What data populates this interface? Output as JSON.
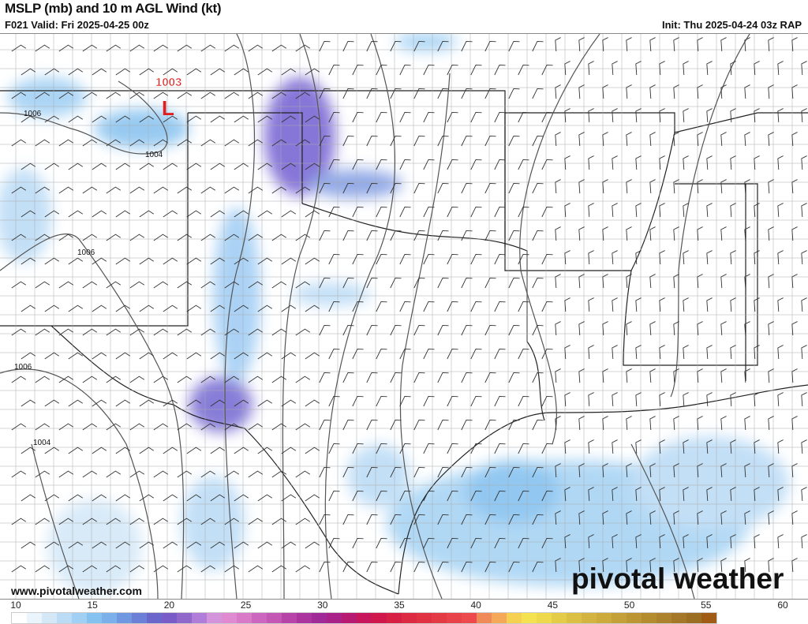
{
  "header": {
    "title": "MSLP (mb) and 10 m AGL Wind (kt)",
    "valid": "F021 Valid: Fri 2025-04-25 00z",
    "init": "Init: Thu 2025-04-24 03z RAP"
  },
  "map": {
    "low_center": {
      "value": "1003",
      "symbol": "L",
      "color": "#e02020"
    },
    "isobar_labels": [
      "1006",
      "1004",
      "1006",
      "1006",
      "1004"
    ]
  },
  "footer": {
    "website": "www.pivotalweather.com",
    "logo": "pivotal weather"
  },
  "colorbar": {
    "ticks": [
      "10",
      "15",
      "20",
      "25",
      "30",
      "35",
      "40",
      "45",
      "50",
      "55",
      "60"
    ],
    "colors": [
      "#ffffff",
      "#eaf4fc",
      "#d4e8f8",
      "#bcdcf6",
      "#a2d0f4",
      "#86c2f0",
      "#7cb0ea",
      "#7098e0",
      "#6c80d8",
      "#6a66cc",
      "#7a5cc8",
      "#9068cc",
      "#b07ed8",
      "#d494dc",
      "#e08ad2",
      "#d87ac8",
      "#cc66be",
      "#c456b4",
      "#b844aa",
      "#ac349e",
      "#a02a98",
      "#a8228a",
      "#b81a72",
      "#c8165c",
      "#d0184c",
      "#d82044",
      "#dc2a42",
      "#e03242",
      "#e43a46",
      "#e8424a",
      "#ec4a4c",
      "#f08a58",
      "#f4a858",
      "#f6d050",
      "#f4e250",
      "#eed84c",
      "#e4cc48",
      "#dcc044",
      "#d4b440",
      "#ccaa3c",
      "#c4a038",
      "#bc9634",
      "#b48c30",
      "#ac822c",
      "#a47828",
      "#9c6e24",
      "#a05c14"
    ]
  }
}
